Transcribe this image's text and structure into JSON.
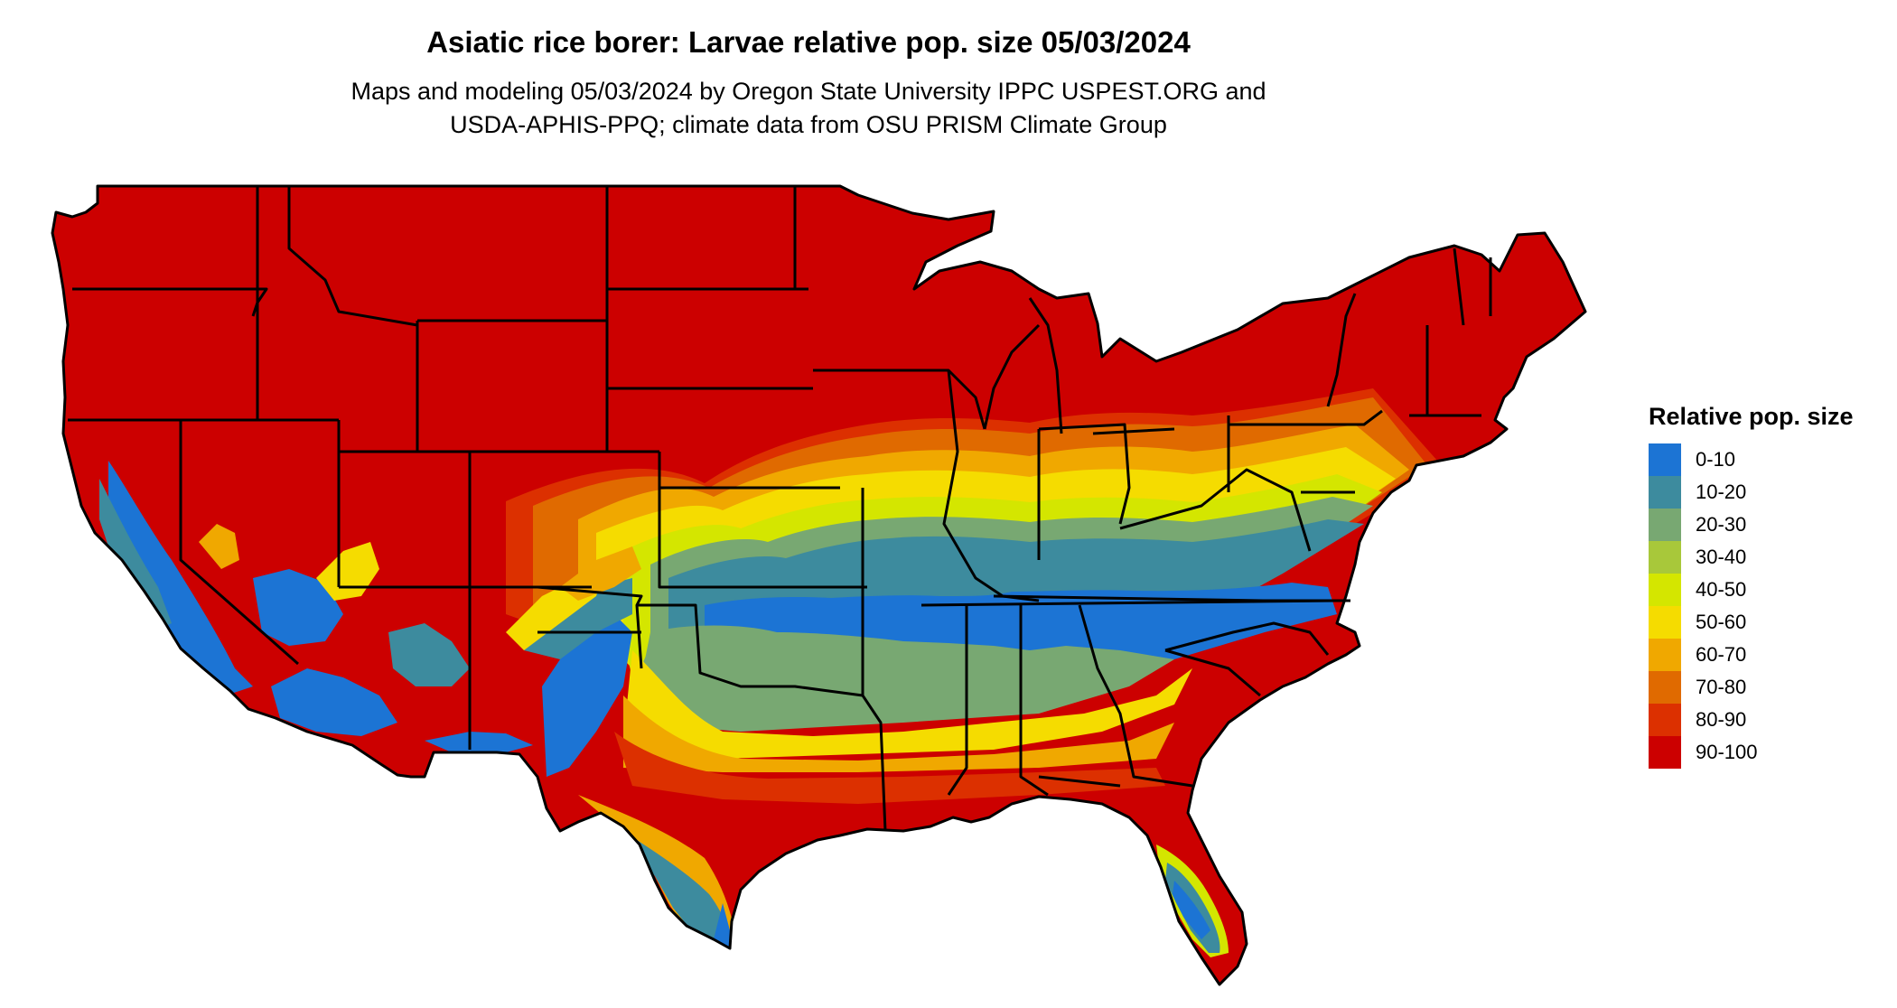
{
  "title": "Asiatic rice borer: Larvae relative pop. size 05/03/2024",
  "subtitle_line1": "Maps and modeling 05/03/2024 by Oregon State University IPPC USPEST.ORG and",
  "subtitle_line2": "USDA-APHIS-PPQ; climate data from OSU PRISM Climate Group",
  "legend": {
    "title": "Relative pop. size",
    "items": [
      {
        "label": "0-10",
        "color": "#1c74d4"
      },
      {
        "label": "10-20",
        "color": "#3d8b9e"
      },
      {
        "label": "20-30",
        "color": "#78a872"
      },
      {
        "label": "30-40",
        "color": "#a8c83a"
      },
      {
        "label": "40-50",
        "color": "#d4e600"
      },
      {
        "label": "50-60",
        "color": "#f5dc00"
      },
      {
        "label": "60-70",
        "color": "#f0a800"
      },
      {
        "label": "70-80",
        "color": "#e06a00"
      },
      {
        "label": "80-90",
        "color": "#dc3000"
      },
      {
        "label": "90-100",
        "color": "#cc0000"
      }
    ]
  }
}
